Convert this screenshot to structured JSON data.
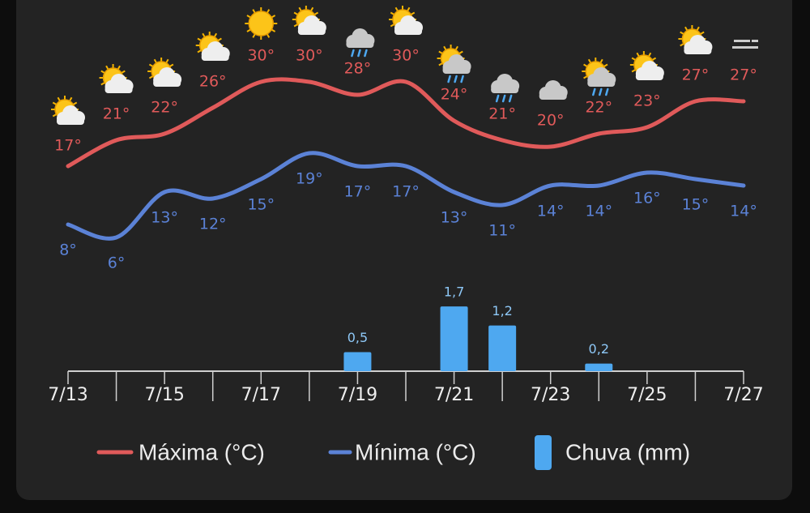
{
  "chart_data": {
    "type": "line",
    "categories": [
      "7/13",
      null,
      "7/15",
      null,
      "7/17",
      null,
      "7/19",
      null,
      "7/21",
      null,
      "7/23",
      null,
      "7/25",
      null,
      "7/27"
    ],
    "series": [
      {
        "name": "Máxima (°C)",
        "color": "#e05a5a",
        "values": [
          17,
          21,
          22,
          26,
          30,
          30,
          28,
          30,
          24,
          21,
          20,
          22,
          23,
          27,
          27
        ],
        "value_labels": [
          "17°",
          "21°",
          "22°",
          "26°",
          "30°",
          "30°",
          "28°",
          "30°",
          "24°",
          "21°",
          "20°",
          "22°",
          "23°",
          "27°",
          "27°"
        ]
      },
      {
        "name": "Mínima (°C)",
        "color": "#5b82d6",
        "values": [
          8,
          6,
          13,
          12,
          15,
          19,
          17,
          17,
          13,
          11,
          14,
          14,
          16,
          15,
          14
        ],
        "value_labels": [
          "8°",
          "6°",
          "13°",
          "12°",
          "15°",
          "19°",
          "17°",
          "17°",
          "13°",
          "11°",
          "14°",
          "14°",
          "16°",
          "15°",
          "14°"
        ]
      },
      {
        "name": "Chuva (mm)",
        "type": "bar",
        "color": "#4ea8f0",
        "values": [
          null,
          null,
          null,
          null,
          null,
          null,
          0.5,
          null,
          1.7,
          1.2,
          null,
          0.2,
          null,
          null,
          null
        ],
        "value_labels": [
          null,
          null,
          null,
          null,
          null,
          null,
          "0,5",
          null,
          "1,7",
          "1,2",
          null,
          "0,2",
          null,
          null,
          null
        ]
      }
    ]
  }
}
